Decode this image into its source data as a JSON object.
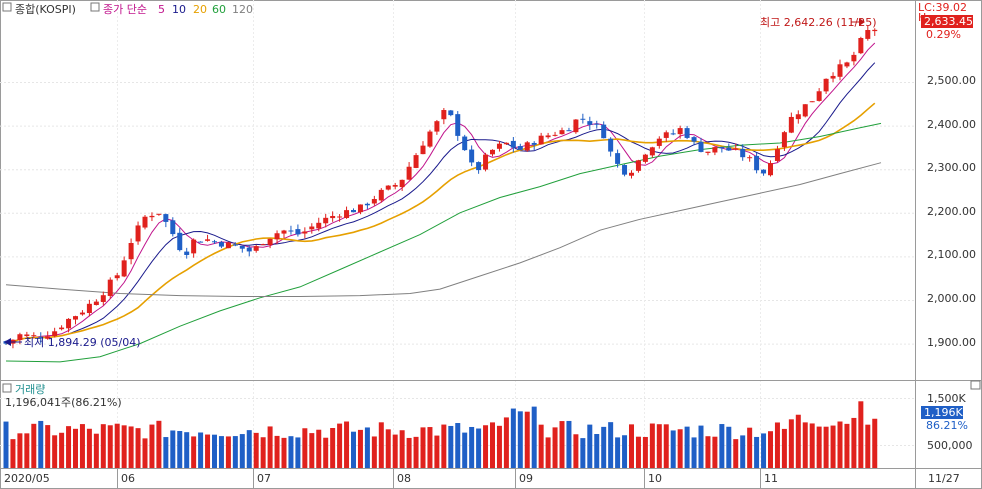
{
  "header": {
    "symbol": "종합(KOSPI)",
    "ma_label": "종가 단순",
    "ma_periods": [
      "5",
      "10",
      "20",
      "60",
      "120"
    ],
    "ma_colors": [
      "#c0148c",
      "#1a1a8c",
      "#e6a000",
      "#22a03c",
      "#808080"
    ]
  },
  "price_axis": {
    "ticks": [
      "2,500.00",
      "2,400.00",
      "2,300.00",
      "2,200.00",
      "2,100.00",
      "2,000.00",
      "1,900.00"
    ],
    "lc_label": "LC:39.02",
    "last_price": "2,633.45",
    "last_change": "0.29%"
  },
  "annotations": {
    "high": "최고 2,642.26 (11/25)",
    "low": "최저 1,894.29 (05/04)"
  },
  "volume": {
    "title": "거래량",
    "info": "1,196,041주(86.21%)",
    "ticks": [
      "1,500K",
      "500,000"
    ],
    "last_value": "1,196K",
    "last_pct": "86.21%"
  },
  "time_axis": {
    "labels": [
      "2020/05",
      "06",
      "07",
      "08",
      "09",
      "10",
      "11"
    ],
    "last_date": "11/27"
  },
  "colors": {
    "up": "#e0211d",
    "down": "#1f5fc6",
    "text_dark": "#333333"
  },
  "chart_data": {
    "type": "candlestick",
    "x": [
      "2020-05-04",
      "2020-06-01",
      "2020-07-01",
      "2020-08-03",
      "2020-09-01",
      "2020-10-05",
      "2020-11-02",
      "2020-11-25",
      "2020-11-27"
    ],
    "ylim": [
      1850,
      2680
    ],
    "high": 2642.26,
    "low": 1894.29,
    "close": 2633.45,
    "volume_ylim": [
      0,
      1700000
    ],
    "last_volume": 1196041
  }
}
